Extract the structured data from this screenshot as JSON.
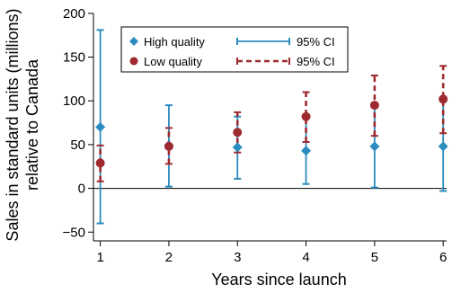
{
  "chart_data": {
    "type": "scatter",
    "subtype": "point-with-error-bars",
    "x_label": "Years since launch",
    "y_label_lines": [
      "Sales in standard units (millions)",
      "relative to Canada"
    ],
    "x_ticks": [
      1,
      2,
      3,
      4,
      5,
      6
    ],
    "y_ticks": [
      -50,
      0,
      50,
      100,
      150,
      200
    ],
    "y_tick_labels": [
      "−50",
      "0",
      "50",
      "100",
      "150",
      "200"
    ],
    "xlim": [
      0.9,
      6.05
    ],
    "ylim": [
      -60,
      205
    ],
    "reference_line_y": 0,
    "grid": false,
    "legend_position": "top-left",
    "series": [
      {
        "name": "High quality",
        "ci_name": "95% CI",
        "color": "#2b8cbe",
        "marker": "diamond",
        "ci_style": "solid",
        "x_offset": 0,
        "x": [
          1,
          2,
          3,
          4,
          5,
          6
        ],
        "y": [
          70,
          49,
          47,
          43,
          48,
          48
        ],
        "ci_low": [
          -40,
          2,
          11,
          5,
          1,
          -3
        ],
        "ci_high": [
          181,
          95,
          82,
          81,
          97,
          99
        ]
      },
      {
        "name": "Low quality",
        "ci_name": "95% CI",
        "color": "#9e2a2f",
        "marker": "circle",
        "ci_style": "dashed",
        "x_offset": 0,
        "x": [
          1,
          2,
          3,
          4,
          5,
          6
        ],
        "y": [
          29,
          48,
          64,
          82,
          95,
          102
        ],
        "ci_low": [
          8,
          28,
          41,
          53,
          60,
          63
        ],
        "ci_high": [
          49,
          69,
          87,
          110,
          129,
          140
        ]
      }
    ]
  }
}
